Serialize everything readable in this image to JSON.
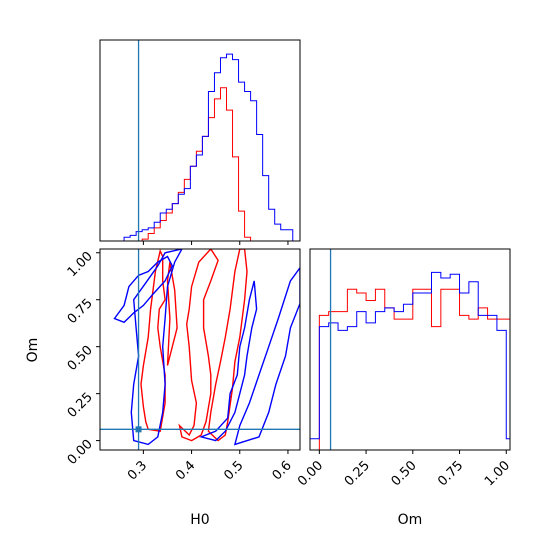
{
  "chart_data": {
    "type": "corner",
    "parameters": [
      "H0",
      "Om"
    ],
    "truth": {
      "H0": 0.29,
      "Om": 0.06
    },
    "colors": {
      "series_a": "#ff0000",
      "series_b": "#0000ff",
      "truth": "#1f77b4",
      "frame": "#000000"
    },
    "ranges": {
      "H0": [
        0.21,
        0.625
      ],
      "Om": [
        -0.05,
        1.02
      ]
    },
    "ticks": {
      "hist_H0": [
        0.3,
        0.4,
        0.5,
        0.6
      ],
      "H0": {
        "values": [
          0.3,
          0.4,
          0.5,
          0.6
        ],
        "labels": [
          "0.3",
          "0.4",
          "0.5",
          "0.6"
        ]
      },
      "Om": {
        "values": [
          0.0,
          0.25,
          0.5,
          0.75,
          1.0
        ],
        "labels": [
          "0.00",
          "0.25",
          "0.50",
          "0.75",
          "1.00"
        ]
      }
    },
    "xlabels": {
      "H0": "H0",
      "Om": "Om"
    },
    "ylabels": {
      "Om": "Om"
    },
    "hist_H0": {
      "bin_start": 0.21,
      "bin_width": 0.0125,
      "series": [
        {
          "counts": [
            0,
            0,
            0,
            0,
            0,
            0,
            0,
            0.01,
            0.04,
            0.07,
            0.11,
            0.15,
            0.2,
            0.26,
            0.33,
            0.4,
            0.48,
            0.56,
            0.66,
            0.76,
            0.82,
            0.7,
            0.45,
            0.16,
            0.02,
            0,
            0,
            0,
            0,
            0,
            0,
            0,
            0
          ]
        },
        {
          "counts": [
            0,
            0,
            0,
            0,
            0.02,
            0.03,
            0.05,
            0.06,
            0.07,
            0.1,
            0.15,
            0.17,
            0.2,
            0.25,
            0.28,
            0.4,
            0.46,
            0.56,
            0.8,
            0.9,
            0.98,
            1.0,
            0.97,
            0.85,
            0.8,
            0.75,
            0.57,
            0.35,
            0.17,
            0.09,
            0.06,
            0.06,
            0
          ]
        }
      ]
    },
    "hist_Om": {
      "bin_start": -0.05,
      "bin_width": 0.05,
      "series": [
        {
          "counts": [
            0,
            0.72,
            0.74,
            0.74,
            0.86,
            0.84,
            0.8,
            0.86,
            0.76,
            0.7,
            0.7,
            0.86,
            0.86,
            0.66,
            0.86,
            0.86,
            0.72,
            0.7,
            0.76,
            0.7,
            0.7,
            0.7
          ]
        },
        {
          "counts": [
            0.06,
            0.66,
            0.68,
            0.64,
            0.66,
            0.74,
            0.68,
            0.74,
            0.76,
            0.74,
            0.78,
            0.84,
            0.84,
            0.95,
            0.92,
            0.94,
            0.84,
            0.9,
            0.72,
            0.72,
            0.64,
            0.06
          ]
        }
      ]
    },
    "contours_2d": [
      {
        "series": 0,
        "points": [
          [
            0.31,
            0.06
          ],
          [
            0.335,
            0.05
          ],
          [
            0.345,
            0.2
          ],
          [
            0.345,
            0.35
          ],
          [
            0.335,
            0.5
          ],
          [
            0.33,
            0.6
          ],
          [
            0.333,
            0.7
          ],
          [
            0.345,
            0.75
          ],
          [
            0.34,
            0.85
          ],
          [
            0.34,
            0.98
          ],
          [
            0.335,
            1.01
          ],
          [
            0.325,
            0.9
          ],
          [
            0.315,
            0.7
          ],
          [
            0.31,
            0.55
          ],
          [
            0.3,
            0.4
          ],
          [
            0.295,
            0.3
          ],
          [
            0.3,
            0.18
          ],
          [
            0.305,
            0.1
          ],
          [
            0.31,
            0.06
          ]
        ]
      },
      {
        "series": 0,
        "points": [
          [
            0.375,
            0.08
          ],
          [
            0.395,
            0.03
          ],
          [
            0.405,
            0.08
          ],
          [
            0.41,
            0.2
          ],
          [
            0.4,
            0.32
          ],
          [
            0.395,
            0.5
          ],
          [
            0.39,
            0.62
          ],
          [
            0.395,
            0.7
          ],
          [
            0.4,
            0.82
          ],
          [
            0.415,
            0.95
          ],
          [
            0.44,
            1.02
          ],
          [
            0.455,
            0.96
          ],
          [
            0.44,
            0.85
          ],
          [
            0.425,
            0.75
          ],
          [
            0.425,
            0.6
          ],
          [
            0.435,
            0.45
          ],
          [
            0.44,
            0.35
          ],
          [
            0.44,
            0.25
          ],
          [
            0.43,
            0.1
          ],
          [
            0.42,
            0.03
          ],
          [
            0.4,
            0.0
          ],
          [
            0.38,
            0.02
          ],
          [
            0.375,
            0.08
          ]
        ]
      },
      {
        "series": 0,
        "points": [
          [
            0.435,
            0.05
          ],
          [
            0.455,
            0.0
          ],
          [
            0.47,
            0.03
          ],
          [
            0.475,
            0.1
          ],
          [
            0.485,
            0.28
          ],
          [
            0.49,
            0.42
          ],
          [
            0.5,
            0.55
          ],
          [
            0.51,
            0.75
          ],
          [
            0.515,
            0.9
          ],
          [
            0.51,
            1.02
          ],
          [
            0.5,
            1.02
          ],
          [
            0.49,
            0.9
          ],
          [
            0.48,
            0.7
          ],
          [
            0.47,
            0.55
          ],
          [
            0.46,
            0.42
          ],
          [
            0.45,
            0.3
          ],
          [
            0.44,
            0.15
          ],
          [
            0.435,
            0.05
          ]
        ]
      },
      {
        "series": 0,
        "points": [
          [
            0.35,
            0.4
          ],
          [
            0.37,
            0.6
          ],
          [
            0.365,
            0.8
          ],
          [
            0.355,
            0.95
          ],
          [
            0.35,
            0.85
          ],
          [
            0.355,
            0.65
          ],
          [
            0.35,
            0.4
          ]
        ]
      },
      {
        "series": 1,
        "points": [
          [
            0.28,
            0.0
          ],
          [
            0.31,
            -0.02
          ],
          [
            0.33,
            0.02
          ],
          [
            0.34,
            0.15
          ],
          [
            0.345,
            0.3
          ],
          [
            0.34,
            0.5
          ],
          [
            0.345,
            0.65
          ],
          [
            0.35,
            0.82
          ],
          [
            0.365,
            0.95
          ],
          [
            0.38,
            1.02
          ],
          [
            0.345,
            1.0
          ],
          [
            0.33,
            0.93
          ],
          [
            0.305,
            0.84
          ],
          [
            0.28,
            0.75
          ],
          [
            0.285,
            0.6
          ],
          [
            0.29,
            0.45
          ],
          [
            0.28,
            0.3
          ],
          [
            0.275,
            0.15
          ],
          [
            0.28,
            0.0
          ]
        ]
      },
      {
        "series": 1,
        "points": [
          [
            0.42,
            0.02
          ],
          [
            0.45,
            0.05
          ],
          [
            0.475,
            0.12
          ],
          [
            0.48,
            0.25
          ],
          [
            0.495,
            0.35
          ],
          [
            0.5,
            0.5
          ],
          [
            0.51,
            0.6
          ],
          [
            0.52,
            0.75
          ],
          [
            0.53,
            0.85
          ],
          [
            0.535,
            0.7
          ],
          [
            0.525,
            0.6
          ],
          [
            0.515,
            0.45
          ],
          [
            0.51,
            0.35
          ],
          [
            0.5,
            0.25
          ],
          [
            0.49,
            0.15
          ],
          [
            0.47,
            0.05
          ],
          [
            0.45,
            0.0
          ],
          [
            0.42,
            0.02
          ]
        ]
      },
      {
        "series": 1,
        "points": [
          [
            0.49,
            -0.02
          ],
          [
            0.54,
            0.02
          ],
          [
            0.56,
            0.15
          ],
          [
            0.575,
            0.3
          ],
          [
            0.595,
            0.45
          ],
          [
            0.605,
            0.6
          ],
          [
            0.625,
            0.73
          ],
          [
            0.625,
            0.92
          ],
          [
            0.605,
            0.85
          ],
          [
            0.58,
            0.65
          ],
          [
            0.56,
            0.5
          ],
          [
            0.54,
            0.35
          ],
          [
            0.52,
            0.2
          ],
          [
            0.5,
            0.08
          ],
          [
            0.49,
            -0.02
          ]
        ]
      },
      {
        "series": 1,
        "points": [
          [
            0.24,
            0.65
          ],
          [
            0.26,
            0.72
          ],
          [
            0.27,
            0.82
          ],
          [
            0.29,
            0.88
          ],
          [
            0.31,
            0.9
          ],
          [
            0.33,
            0.95
          ],
          [
            0.35,
            0.98
          ],
          [
            0.36,
            0.93
          ],
          [
            0.345,
            0.85
          ],
          [
            0.32,
            0.78
          ],
          [
            0.3,
            0.72
          ],
          [
            0.28,
            0.68
          ],
          [
            0.26,
            0.63
          ],
          [
            0.24,
            0.65
          ]
        ]
      }
    ]
  }
}
